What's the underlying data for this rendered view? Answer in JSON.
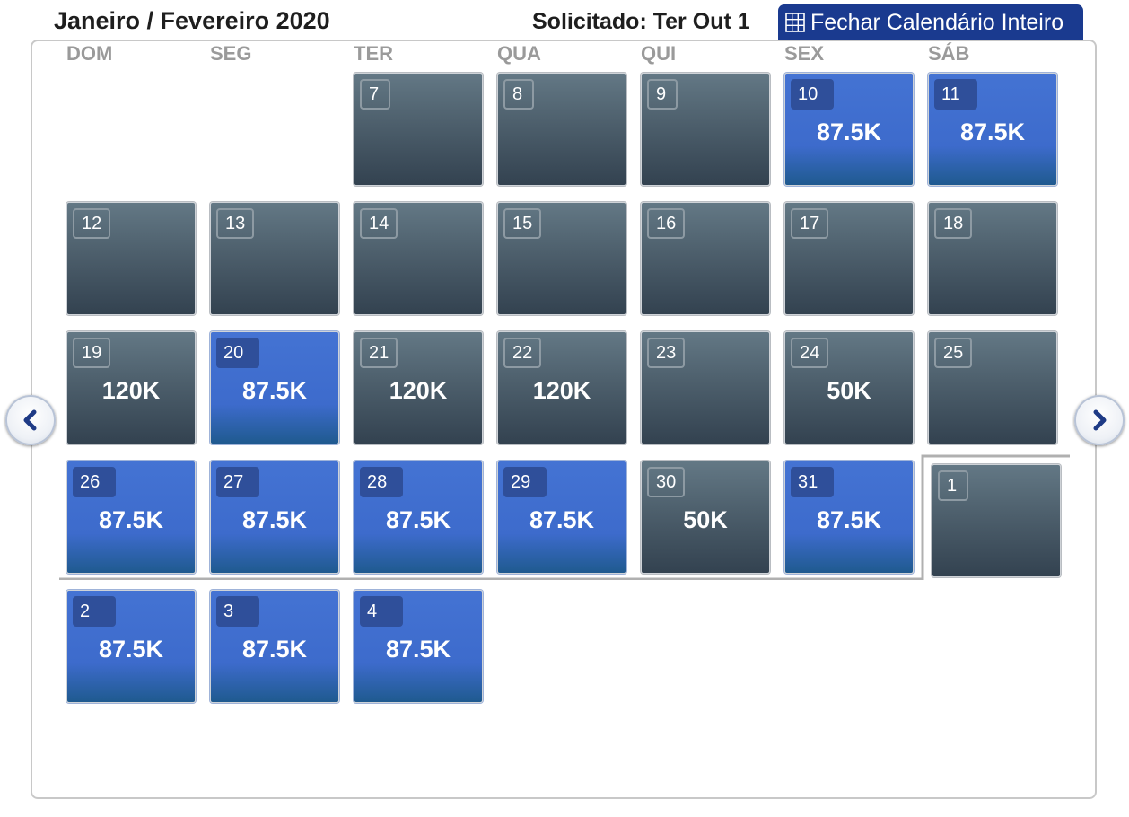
{
  "header": {
    "title": "Janeiro / Fevereiro 2020",
    "requested": "Solicitado: Ter Out 1",
    "close_button_label": "Fechar Calendário Inteiro",
    "close_button_icon": "calendar-grid-icon"
  },
  "weekdays": [
    "DOM",
    "SEG",
    "TER",
    "QUA",
    "QUI",
    "SEX",
    "SÁB"
  ],
  "colors": {
    "available_blue": "#3d6bcc",
    "default_gray": "#4d5f6c",
    "header_button": "#1a3a8f"
  },
  "nav": {
    "prev_icon": "chevron-left-icon",
    "next_icon": "chevron-right-icon"
  },
  "days": [
    {
      "day": "7",
      "price": "",
      "highlight": false,
      "row": 0,
      "col": 2
    },
    {
      "day": "8",
      "price": "",
      "highlight": false,
      "row": 0,
      "col": 3
    },
    {
      "day": "9",
      "price": "",
      "highlight": false,
      "row": 0,
      "col": 4
    },
    {
      "day": "10",
      "price": "87.5K",
      "highlight": true,
      "row": 0,
      "col": 5
    },
    {
      "day": "11",
      "price": "87.5K",
      "highlight": true,
      "row": 0,
      "col": 6
    },
    {
      "day": "12",
      "price": "",
      "highlight": false,
      "row": 1,
      "col": 0
    },
    {
      "day": "13",
      "price": "",
      "highlight": false,
      "row": 1,
      "col": 1
    },
    {
      "day": "14",
      "price": "",
      "highlight": false,
      "row": 1,
      "col": 2
    },
    {
      "day": "15",
      "price": "",
      "highlight": false,
      "row": 1,
      "col": 3
    },
    {
      "day": "16",
      "price": "",
      "highlight": false,
      "row": 1,
      "col": 4
    },
    {
      "day": "17",
      "price": "",
      "highlight": false,
      "row": 1,
      "col": 5
    },
    {
      "day": "18",
      "price": "",
      "highlight": false,
      "row": 1,
      "col": 6
    },
    {
      "day": "19",
      "price": "120K",
      "highlight": false,
      "row": 2,
      "col": 0
    },
    {
      "day": "20",
      "price": "87.5K",
      "highlight": true,
      "row": 2,
      "col": 1
    },
    {
      "day": "21",
      "price": "120K",
      "highlight": false,
      "row": 2,
      "col": 2
    },
    {
      "day": "22",
      "price": "120K",
      "highlight": false,
      "row": 2,
      "col": 3
    },
    {
      "day": "23",
      "price": "",
      "highlight": false,
      "row": 2,
      "col": 4
    },
    {
      "day": "24",
      "price": "50K",
      "highlight": false,
      "row": 2,
      "col": 5
    },
    {
      "day": "25",
      "price": "",
      "highlight": false,
      "row": 2,
      "col": 6
    },
    {
      "day": "26",
      "price": "87.5K",
      "highlight": true,
      "row": 3,
      "col": 0
    },
    {
      "day": "27",
      "price": "87.5K",
      "highlight": true,
      "row": 3,
      "col": 1
    },
    {
      "day": "28",
      "price": "87.5K",
      "highlight": true,
      "row": 3,
      "col": 2
    },
    {
      "day": "29",
      "price": "87.5K",
      "highlight": true,
      "row": 3,
      "col": 3
    },
    {
      "day": "30",
      "price": "50K",
      "highlight": false,
      "row": 3,
      "col": 4
    },
    {
      "day": "31",
      "price": "87.5K",
      "highlight": true,
      "row": 3,
      "col": 5
    },
    {
      "day": "1",
      "price": "",
      "highlight": false,
      "row": 3,
      "col": 6,
      "next_month": true
    },
    {
      "day": "2",
      "price": "87.5K",
      "highlight": true,
      "row": 4,
      "col": 0
    },
    {
      "day": "3",
      "price": "87.5K",
      "highlight": true,
      "row": 4,
      "col": 1
    },
    {
      "day": "4",
      "price": "87.5K",
      "highlight": true,
      "row": 4,
      "col": 2
    }
  ]
}
